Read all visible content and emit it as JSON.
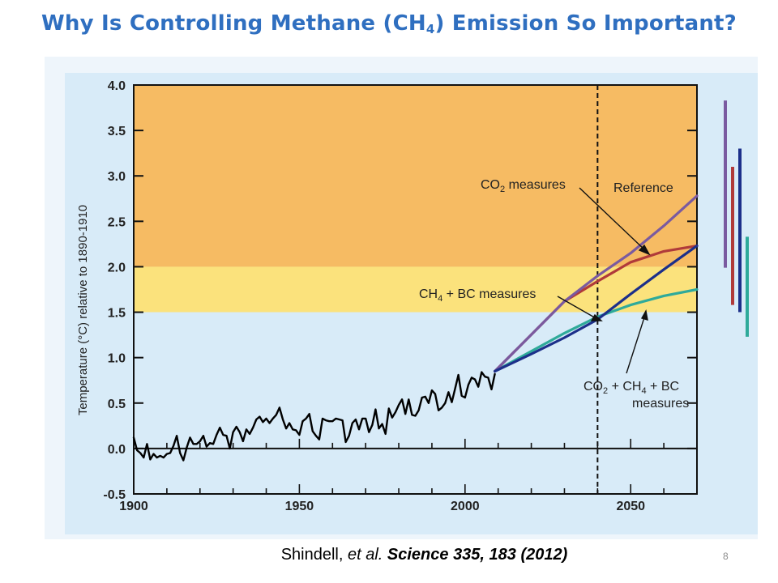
{
  "slide": {
    "title_pre": "Why Is Controlling Methane (CH",
    "title_sub": "4",
    "title_post": ") Emission So Important?",
    "citation_author": "Shindell,",
    "citation_etal": "et al.",
    "citation_journal": "Science",
    "citation_ref": "335, 183 (2012)",
    "page_number": "8"
  },
  "colors": {
    "band_orange": "#f6bb63",
    "band_yellow": "#fbe27c",
    "band_blue": "#d8ebf8",
    "observed": "#000000",
    "reference": "#7a5aa0",
    "co2": "#b03a3a",
    "ch4_bc": "#2faa9a",
    "combined": "#1c2f8a"
  },
  "chart_data": {
    "type": "line",
    "title": "",
    "xlabel": "",
    "ylabel": "Temperature (°C) relative to 1890-1910",
    "xlim": [
      1900,
      2070
    ],
    "ylim": [
      -0.5,
      4.0
    ],
    "xticks": [
      "1900",
      "1950",
      "2000",
      "2050"
    ],
    "yticks": [
      "4.0",
      "3.5",
      "3.0",
      "2.5",
      "2.0",
      "1.5",
      "1.0",
      "0.5",
      "0.0",
      "-0.5"
    ],
    "bands": [
      {
        "from": 2.0,
        "to": 4.0,
        "color": "orange"
      },
      {
        "from": 1.5,
        "to": 2.0,
        "color": "yellow"
      },
      {
        "from": -0.5,
        "to": 1.5,
        "color": "blue"
      }
    ],
    "vline_x": 2040,
    "series": [
      {
        "name": "observed",
        "x": [
          1900,
          1901,
          1902,
          1903,
          1904,
          1905,
          1906,
          1907,
          1908,
          1909,
          1910,
          1911,
          1912,
          1913,
          1914,
          1915,
          1916,
          1917,
          1918,
          1919,
          1920,
          1921,
          1922,
          1923,
          1924,
          1925,
          1926,
          1927,
          1928,
          1929,
          1930,
          1931,
          1932,
          1933,
          1934,
          1935,
          1936,
          1937,
          1938,
          1939,
          1940,
          1941,
          1942,
          1943,
          1944,
          1945,
          1946,
          1947,
          1948,
          1949,
          1950,
          1951,
          1952,
          1953,
          1954,
          1955,
          1956,
          1957,
          1958,
          1959,
          1960,
          1961,
          1962,
          1963,
          1964,
          1965,
          1966,
          1967,
          1968,
          1969,
          1970,
          1971,
          1972,
          1973,
          1974,
          1975,
          1976,
          1977,
          1978,
          1979,
          1980,
          1981,
          1982,
          1983,
          1984,
          1985,
          1986,
          1987,
          1988,
          1989,
          1990,
          1991,
          1992,
          1993,
          1994,
          1995,
          1996,
          1997,
          1998,
          1999,
          2000,
          2001,
          2002,
          2003,
          2004,
          2005,
          2006,
          2007,
          2008,
          2009
        ],
        "values": [
          0.12,
          -0.02,
          -0.05,
          -0.1,
          0.05,
          -0.12,
          -0.06,
          -0.1,
          -0.08,
          -0.1,
          -0.06,
          -0.05,
          0.03,
          0.14,
          -0.05,
          -0.13,
          0.01,
          0.12,
          0.05,
          0.05,
          0.08,
          0.14,
          0.02,
          0.06,
          0.05,
          0.15,
          0.23,
          0.15,
          0.14,
          0.0,
          0.18,
          0.24,
          0.18,
          0.08,
          0.21,
          0.16,
          0.23,
          0.32,
          0.35,
          0.29,
          0.33,
          0.28,
          0.33,
          0.37,
          0.45,
          0.32,
          0.22,
          0.28,
          0.21,
          0.2,
          0.15,
          0.3,
          0.33,
          0.38,
          0.19,
          0.14,
          0.1,
          0.33,
          0.31,
          0.3,
          0.3,
          0.33,
          0.32,
          0.31,
          0.07,
          0.14,
          0.28,
          0.32,
          0.21,
          0.33,
          0.33,
          0.18,
          0.26,
          0.43,
          0.22,
          0.27,
          0.16,
          0.44,
          0.34,
          0.4,
          0.48,
          0.54,
          0.38,
          0.54,
          0.37,
          0.36,
          0.42,
          0.56,
          0.57,
          0.5,
          0.64,
          0.6,
          0.42,
          0.45,
          0.5,
          0.62,
          0.51,
          0.66,
          0.81,
          0.58,
          0.56,
          0.7,
          0.78,
          0.76,
          0.68,
          0.84,
          0.79,
          0.78,
          0.65,
          0.82
        ]
      },
      {
        "name": "Reference",
        "x": [
          2009,
          2030,
          2040,
          2050,
          2060,
          2070
        ],
        "values": [
          0.85,
          1.62,
          1.9,
          2.15,
          2.45,
          2.78
        ]
      },
      {
        "name": "CO2 measures",
        "x": [
          2009,
          2030,
          2040,
          2050,
          2060,
          2070
        ],
        "values": [
          0.85,
          1.62,
          1.84,
          2.05,
          2.17,
          2.23
        ]
      },
      {
        "name": "CH4 + BC measures",
        "x": [
          2009,
          2020,
          2030,
          2040,
          2050,
          2060,
          2070
        ],
        "values": [
          0.85,
          1.07,
          1.27,
          1.45,
          1.58,
          1.68,
          1.75
        ]
      },
      {
        "name": "CO2 + CH4 + BC measures",
        "x": [
          2009,
          2020,
          2030,
          2040,
          2050,
          2060,
          2070
        ],
        "values": [
          0.85,
          1.04,
          1.22,
          1.42,
          1.7,
          1.97,
          2.23
        ]
      }
    ],
    "range_bars_y": [
      {
        "series": "Reference",
        "y1": 1.99,
        "y2": 3.83
      },
      {
        "series": "CO2 measures",
        "y1": 1.58,
        "y2": 3.1
      },
      {
        "series": "CO2 + CH4 + BC measures",
        "y1": 1.5,
        "y2": 3.3
      },
      {
        "series": "CH4 + BC measures",
        "y1": 1.23,
        "y2": 2.33
      }
    ],
    "annotations": {
      "co2_label": "CO",
      "co2_sub": "2",
      "co2_rest": " measures",
      "reference_label": "Reference",
      "ch4bc_label": "CH",
      "ch4bc_sub": "4",
      "ch4bc_rest": " + BC measures",
      "combo_a": "CO",
      "combo_sub2": "2",
      "combo_b": " + CH",
      "combo_sub4": "4",
      "combo_c": " + BC",
      "combo_line2": "measures"
    }
  }
}
